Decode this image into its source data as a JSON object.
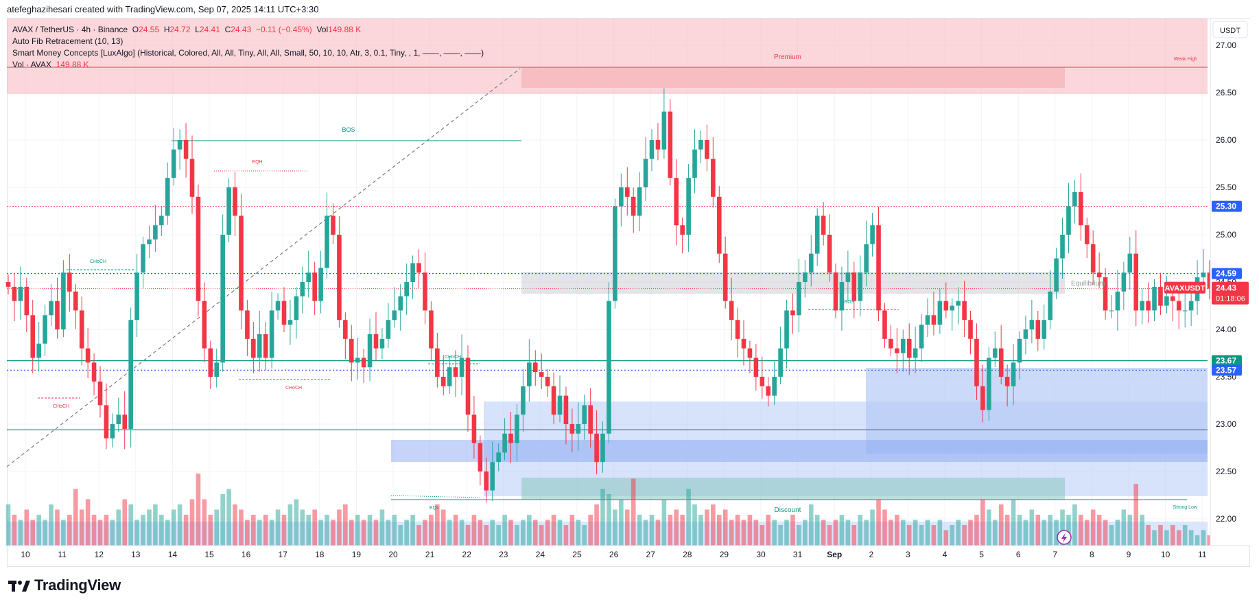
{
  "header": {
    "title": "atefeghazihesari created with TradingView.com, Sep 07, 2025 14:11 UTC+3:30"
  },
  "legend": {
    "symbol": "AVAX / TetherUS · 4h · Binance",
    "o_label": "O",
    "o_value": "24.55",
    "h_label": "H",
    "h_value": "24.72",
    "l_label": "L",
    "l_value": "24.41",
    "c_label": "C",
    "c_value": "24.43",
    "change": "−0.11 (−0.45%)",
    "vol_label": "Vol",
    "vol_value": "149.88 K",
    "indicator1": "Auto Fib Retracement (10, 13)",
    "indicator2": "Smart Money Concepts [LuxAlgo] (Historical, Colored, All, All, Tiny, All, All, Small, 50, 10, 10, Atr, 3, 0.1, Tiny, , 1, ——, ——, ——)",
    "indicator3_label": "Vol · AVAX",
    "indicator3_value": "149.88 K"
  },
  "footer": {
    "brand": "TradingView"
  },
  "colors": {
    "up": "#26a69a",
    "down": "#f23645",
    "premium": "#f7b7bd",
    "discount": "#b7cbf7",
    "blue_line": "#2962ff",
    "green_line": "#089981"
  },
  "chart_data": {
    "type": "candlestick",
    "symbol": "AVAXUSDT",
    "currency": "USDT",
    "ylim": [
      21.7,
      27.2
    ],
    "y_ticks": [
      "27.00",
      "26.50",
      "26.00",
      "25.50",
      "25.00",
      "24.50",
      "24.00",
      "23.50",
      "23.00",
      "22.50",
      "22.00"
    ],
    "x_ticks": [
      "10",
      "11",
      "12",
      "13",
      "14",
      "15",
      "16",
      "17",
      "18",
      "19",
      "20",
      "21",
      "22",
      "23",
      "24",
      "25",
      "26",
      "27",
      "28",
      "29",
      "30",
      "31",
      "Sep",
      "2",
      "3",
      "4",
      "5",
      "6",
      "7",
      "8",
      "9",
      "10",
      "11"
    ],
    "price_tags": [
      {
        "label": "25.30",
        "value": 25.3,
        "color": "#2962ff"
      },
      {
        "label": "24.59",
        "value": 24.59,
        "color": "#2962ff"
      },
      {
        "label": "23.67",
        "value": 23.67,
        "color": "#089981"
      },
      {
        "label": "23.57",
        "value": 23.57,
        "color": "#2962ff"
      }
    ],
    "last_price": {
      "symbol": "AVAXUSDT",
      "value": "24.43",
      "countdown": "01:18:06"
    },
    "zone_labels": {
      "premium": "Premium",
      "weak_high": "Weak High",
      "equilibrium": "Equilibrium",
      "discount": "Discount",
      "strong_low": "Strong Low"
    },
    "structure_labels": {
      "bos1": "BOS",
      "bos2": "BOS",
      "eqh": "EQH",
      "eql": "EQL",
      "choch1": "CHoCH",
      "choch2": "CHoCH",
      "choch3": "CHoCH",
      "choch4": "CHoCH"
    },
    "closes": [
      24.45,
      24.3,
      24.45,
      24.15,
      23.7,
      23.85,
      24.15,
      24.3,
      24.0,
      24.6,
      24.4,
      24.2,
      23.8,
      23.65,
      23.45,
      23.2,
      22.85,
      23.0,
      23.1,
      22.95,
      24.1,
      24.6,
      24.9,
      24.95,
      25.1,
      25.2,
      25.6,
      25.9,
      26.0,
      25.8,
      25.4,
      24.3,
      23.8,
      23.5,
      23.65,
      25.0,
      25.5,
      25.2,
      24.2,
      23.9,
      23.7,
      23.95,
      23.7,
      24.2,
      24.3,
      24.05,
      24.1,
      24.35,
      24.5,
      24.6,
      24.3,
      24.65,
      25.2,
      25.0,
      24.1,
      23.9,
      23.65,
      23.7,
      23.6,
      23.95,
      23.8,
      23.9,
      24.1,
      24.2,
      24.35,
      24.5,
      24.7,
      24.6,
      24.2,
      23.8,
      23.5,
      23.4,
      23.6,
      23.5,
      23.7,
      23.1,
      22.8,
      22.5,
      22.3,
      22.6,
      22.7,
      22.9,
      22.8,
      23.1,
      23.4,
      23.65,
      23.55,
      23.5,
      23.4,
      23.1,
      23.3,
      23.0,
      22.9,
      23.0,
      23.2,
      22.9,
      22.6,
      22.9,
      24.3,
      25.3,
      25.5,
      25.4,
      25.2,
      25.5,
      25.8,
      26.0,
      25.9,
      26.3,
      25.6,
      25.1,
      25.0,
      25.6,
      25.9,
      26.0,
      25.8,
      25.4,
      24.8,
      24.3,
      24.1,
      23.9,
      23.8,
      23.7,
      23.5,
      23.4,
      23.3,
      23.5,
      23.8,
      24.2,
      24.15,
      24.5,
      24.6,
      24.8,
      25.2,
      25.0,
      24.6,
      24.2,
      24.5,
      24.6,
      24.3,
      24.6,
      24.9,
      25.1,
      24.2,
      23.9,
      23.8,
      23.75,
      23.9,
      23.7,
      23.8,
      24.05,
      24.15,
      24.05,
      24.3,
      24.2,
      24.25,
      24.3,
      24.1,
      23.9,
      23.4,
      23.15,
      23.7,
      23.8,
      23.5,
      23.4,
      23.65,
      23.9,
      24.0,
      24.1,
      23.9,
      24.1,
      24.4,
      24.75,
      25.0,
      25.3,
      25.45,
      25.1,
      24.9,
      24.6,
      24.55,
      24.2,
      24.2,
      24.4,
      24.6,
      24.8,
      24.2,
      24.3,
      24.2,
      24.45,
      24.25,
      24.35,
      24.3,
      24.2,
      24.2,
      24.3,
      24.55,
      24.6,
      24.43
    ],
    "volume": {
      "name": "Vol · AVAX",
      "values": [
        0.8,
        0.6,
        0.5,
        0.7,
        0.5,
        0.6,
        0.5,
        0.8,
        0.7,
        0.5,
        0.6,
        1.1,
        0.7,
        0.9,
        0.6,
        0.5,
        0.6,
        0.5,
        0.7,
        0.9,
        0.8,
        0.5,
        0.6,
        0.7,
        0.8,
        0.6,
        0.5,
        0.7,
        0.8,
        0.6,
        0.9,
        1.4,
        0.9,
        0.6,
        0.7,
        1.0,
        1.1,
        0.8,
        0.7,
        0.5,
        0.6,
        0.5,
        0.6,
        0.5,
        0.7,
        0.6,
        0.8,
        0.9,
        0.7,
        0.6,
        0.7,
        0.5,
        0.6,
        0.5,
        0.7,
        0.8,
        0.5,
        0.6,
        0.5,
        0.6,
        0.5,
        0.7,
        0.5,
        0.6,
        0.4,
        0.5,
        0.6,
        0.4,
        0.5,
        0.6,
        0.8,
        0.7,
        0.5,
        0.6,
        0.5,
        0.4,
        0.6,
        0.5,
        0.4,
        0.5,
        0.4,
        0.6,
        0.5,
        0.4,
        0.5,
        0.6,
        0.5,
        0.4,
        0.5,
        0.6,
        0.5,
        0.4,
        0.6,
        0.5,
        0.4,
        0.6,
        0.8,
        1.1,
        1.0,
        0.7,
        0.9,
        0.7,
        1.3,
        0.6,
        0.5,
        0.6,
        0.5,
        0.9,
        0.6,
        0.7,
        0.6,
        1.1,
        0.8,
        0.6,
        0.7,
        0.8,
        0.6,
        0.7,
        0.5,
        0.6,
        0.5,
        0.6,
        0.5,
        0.4,
        0.6,
        0.5,
        0.4,
        0.5,
        0.6,
        0.4,
        0.5,
        0.8,
        0.6,
        0.5,
        0.4,
        0.5,
        0.6,
        0.5,
        0.4,
        0.6,
        0.5,
        0.7,
        0.9,
        0.7,
        0.5,
        0.6,
        0.5,
        0.4,
        0.5,
        0.4,
        0.5,
        0.4,
        0.5,
        0.3,
        0.4,
        0.5,
        0.4,
        0.5,
        0.6,
        0.9,
        0.7,
        0.5,
        0.8,
        0.6,
        0.9,
        0.6,
        0.5,
        0.7,
        0.6,
        0.5,
        0.6,
        0.5,
        0.7,
        0.6,
        0.8,
        0.6,
        0.5,
        0.7,
        0.6,
        0.5,
        0.4,
        0.5,
        0.7,
        0.6,
        1.2,
        0.6,
        0.4,
        0.3,
        0.4,
        0.3,
        0.4,
        0.3,
        0.4,
        0.3,
        0.2,
        0.3,
        0.2,
        0.2
      ]
    }
  }
}
